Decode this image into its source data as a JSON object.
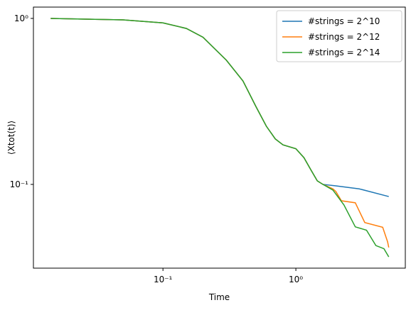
{
  "chart_data": {
    "type": "line",
    "xlabel": "Time",
    "ylabel": "⟨Xtot(t)⟩",
    "xscale": "log",
    "yscale": "log",
    "xlim": [
      0.0106,
      6.66
    ],
    "ylim": [
      0.0313,
      1.17
    ],
    "xticks": [
      {
        "value": 0.1,
        "label": "10⁻¹"
      },
      {
        "value": 1,
        "label": "10⁰"
      }
    ],
    "yticks": [
      {
        "value": 0.1,
        "label": "10⁻¹"
      },
      {
        "value": 1,
        "label": "10⁰"
      }
    ],
    "legend": "upper right",
    "series": [
      {
        "name": "#strings = 2^10",
        "color": "#1f77b4",
        "x": [
          0.0143,
          0.05,
          0.1,
          0.15,
          0.2,
          0.3,
          0.4,
          0.5,
          0.6,
          0.7,
          0.8,
          1.0,
          1.15,
          1.3,
          1.45,
          1.6,
          2.0,
          3.0,
          5.0
        ],
        "values": [
          1.0,
          0.98,
          0.94,
          0.87,
          0.77,
          0.56,
          0.42,
          0.295,
          0.224,
          0.188,
          0.173,
          0.164,
          0.145,
          0.122,
          0.105,
          0.1,
          0.098,
          0.094,
          0.0845
        ]
      },
      {
        "name": "#strings = 2^12",
        "color": "#ff7f0e",
        "x": [
          0.0143,
          0.05,
          0.1,
          0.15,
          0.2,
          0.3,
          0.4,
          0.5,
          0.6,
          0.7,
          0.8,
          1.0,
          1.15,
          1.3,
          1.45,
          1.6,
          1.9,
          2.0,
          2.2,
          2.8,
          3.3,
          4.5,
          4.9,
          5.0
        ],
        "values": [
          1.0,
          0.98,
          0.94,
          0.87,
          0.77,
          0.56,
          0.42,
          0.295,
          0.224,
          0.188,
          0.173,
          0.164,
          0.145,
          0.122,
          0.105,
          0.1,
          0.094,
          0.0906,
          0.0797,
          0.0775,
          0.0589,
          0.0552,
          0.0451,
          0.0417
        ]
      },
      {
        "name": "#strings = 2^14",
        "color": "#2ca02c",
        "x": [
          0.0143,
          0.05,
          0.1,
          0.15,
          0.2,
          0.3,
          0.4,
          0.5,
          0.6,
          0.7,
          0.8,
          1.0,
          1.15,
          1.3,
          1.45,
          1.6,
          1.9,
          2.3,
          2.8,
          3.4,
          4.0,
          4.6,
          5.0
        ],
        "values": [
          1.0,
          0.98,
          0.94,
          0.87,
          0.77,
          0.56,
          0.42,
          0.295,
          0.224,
          0.188,
          0.173,
          0.164,
          0.145,
          0.122,
          0.105,
          0.1,
          0.0924,
          0.0752,
          0.0555,
          0.053,
          0.0428,
          0.041,
          0.0366
        ]
      }
    ]
  }
}
